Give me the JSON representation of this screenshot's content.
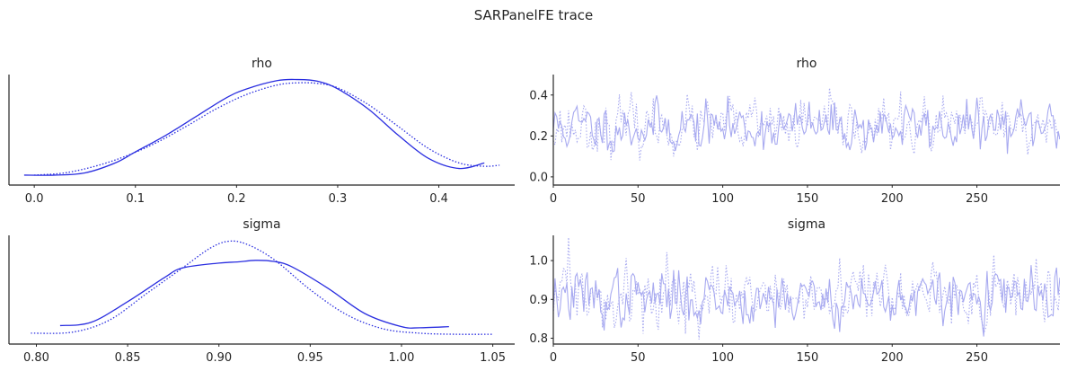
{
  "figure": {
    "title": "SARPanelFE trace"
  },
  "chart_data": [
    {
      "id": "rho-density",
      "type": "line",
      "title": "rho",
      "xlabel": "",
      "ylabel": "",
      "xlim": [
        -0.025,
        0.475
      ],
      "ylim": [
        0,
        1.0
      ],
      "xticks": [
        "0.0",
        "0.1",
        "0.2",
        "0.3",
        "0.4"
      ],
      "xtick_values": [
        0.0,
        0.1,
        0.2,
        0.3,
        0.4
      ],
      "yticks": [],
      "grid": false,
      "color": "#2a2ee0",
      "series": [
        {
          "style": "solid",
          "x": [
            -0.01,
            0.02,
            0.05,
            0.08,
            0.1,
            0.13,
            0.16,
            0.19,
            0.21,
            0.24,
            0.26,
            0.28,
            0.3,
            0.33,
            0.36,
            0.39,
            0.42,
            0.445
          ],
          "y": [
            0.09,
            0.09,
            0.11,
            0.2,
            0.3,
            0.45,
            0.62,
            0.79,
            0.87,
            0.945,
            0.955,
            0.94,
            0.87,
            0.69,
            0.45,
            0.24,
            0.15,
            0.2
          ]
        },
        {
          "style": "dotted",
          "x": [
            0.0,
            0.03,
            0.06,
            0.09,
            0.12,
            0.15,
            0.18,
            0.21,
            0.24,
            0.26,
            0.28,
            0.3,
            0.33,
            0.36,
            0.39,
            0.42,
            0.445,
            0.46
          ],
          "y": [
            0.09,
            0.11,
            0.17,
            0.26,
            0.38,
            0.53,
            0.69,
            0.82,
            0.905,
            0.925,
            0.92,
            0.88,
            0.73,
            0.53,
            0.33,
            0.2,
            0.17,
            0.18
          ]
        }
      ]
    },
    {
      "id": "rho-trace",
      "type": "line",
      "title": "rho",
      "xlabel": "",
      "ylabel": "",
      "xlim": [
        0,
        299
      ],
      "ylim": [
        -0.04,
        0.5
      ],
      "xticks": [
        "0",
        "50",
        "100",
        "150",
        "200",
        "250"
      ],
      "xtick_values": [
        0,
        50,
        100,
        150,
        200,
        250
      ],
      "yticks": [
        "0.0",
        "0.2",
        "0.4"
      ],
      "ytick_values": [
        0.0,
        0.2,
        0.4
      ],
      "grid": false,
      "color": "#a8aaf0",
      "n_draws": 300,
      "series": [
        {
          "style": "solid",
          "center": 0.245,
          "spread": 0.06,
          "seed": 11
        },
        {
          "style": "dotted",
          "center": 0.245,
          "spread": 0.065,
          "seed": 23
        }
      ]
    },
    {
      "id": "sigma-density",
      "type": "line",
      "title": "sigma",
      "xlabel": "",
      "ylabel": "",
      "xlim": [
        0.785,
        1.062
      ],
      "ylim": [
        0,
        1.0
      ],
      "xticks": [
        "0.80",
        "0.85",
        "0.90",
        "0.95",
        "1.00",
        "1.05"
      ],
      "xtick_values": [
        0.8,
        0.85,
        0.9,
        0.95,
        1.0,
        1.05
      ],
      "yticks": [],
      "grid": false,
      "color": "#2a2ee0",
      "series": [
        {
          "style": "solid",
          "x": [
            0.813,
            0.83,
            0.85,
            0.87,
            0.88,
            0.9,
            0.91,
            0.92,
            0.93,
            0.94,
            0.96,
            0.98,
            1.0,
            1.01,
            1.026
          ],
          "y": [
            0.17,
            0.2,
            0.39,
            0.61,
            0.7,
            0.745,
            0.755,
            0.77,
            0.76,
            0.71,
            0.51,
            0.28,
            0.16,
            0.15,
            0.16
          ]
        },
        {
          "style": "dotted",
          "x": [
            0.797,
            0.82,
            0.84,
            0.86,
            0.88,
            0.895,
            0.905,
            0.915,
            0.93,
            0.95,
            0.97,
            0.99,
            1.01,
            1.03,
            1.05
          ],
          "y": [
            0.1,
            0.11,
            0.22,
            0.46,
            0.7,
            0.88,
            0.945,
            0.92,
            0.78,
            0.5,
            0.27,
            0.14,
            0.1,
            0.09,
            0.09
          ]
        }
      ]
    },
    {
      "id": "sigma-trace",
      "type": "line",
      "title": "sigma",
      "xlabel": "",
      "ylabel": "",
      "xlim": [
        0,
        299
      ],
      "ylim": [
        0.785,
        1.065
      ],
      "xticks": [
        "0",
        "50",
        "100",
        "150",
        "200",
        "250"
      ],
      "xtick_values": [
        0,
        50,
        100,
        150,
        200,
        250
      ],
      "yticks": [
        "0.8",
        "0.9",
        "1.0"
      ],
      "ytick_values": [
        0.8,
        0.9,
        1.0
      ],
      "grid": false,
      "color": "#a8aaf0",
      "n_draws": 300,
      "series": [
        {
          "style": "solid",
          "center": 0.905,
          "spread": 0.035,
          "seed": 37
        },
        {
          "style": "dotted",
          "center": 0.905,
          "spread": 0.04,
          "seed": 59
        }
      ]
    }
  ]
}
